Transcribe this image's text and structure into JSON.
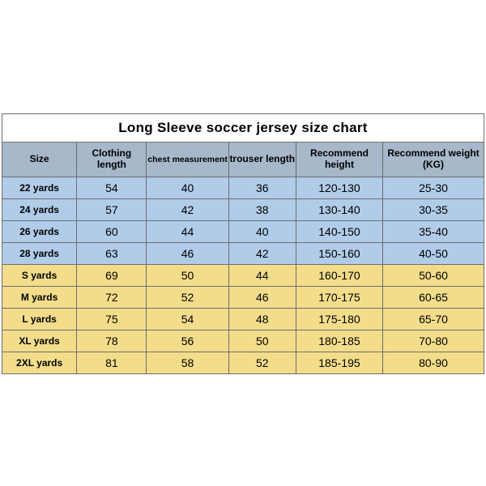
{
  "chart": {
    "title": "Long Sleeve soccer jersey size chart",
    "title_fontsize": 17,
    "header_bg": "#a6b8ca",
    "kid_row_bg": "#b0cce8",
    "adult_row_bg": "#f3dd8b",
    "border_color": "#6d6d6d",
    "columns": [
      {
        "label": "Size"
      },
      {
        "label": "Clothing length"
      },
      {
        "label": "chest measurement"
      },
      {
        "label": "trouser length"
      },
      {
        "label": "Recommend height"
      },
      {
        "label": "Recommend weight (KG)"
      }
    ],
    "rows": [
      {
        "group": "kid",
        "size": "22 yards",
        "clothing": "54",
        "chest": "40",
        "trouser": "36",
        "height": "120-130",
        "weight": "25-30"
      },
      {
        "group": "kid",
        "size": "24 yards",
        "clothing": "57",
        "chest": "42",
        "trouser": "38",
        "height": "130-140",
        "weight": "30-35"
      },
      {
        "group": "kid",
        "size": "26 yards",
        "clothing": "60",
        "chest": "44",
        "trouser": "40",
        "height": "140-150",
        "weight": "35-40"
      },
      {
        "group": "kid",
        "size": "28 yards",
        "clothing": "63",
        "chest": "46",
        "trouser": "42",
        "height": "150-160",
        "weight": "40-50"
      },
      {
        "group": "adult",
        "size": "S yards",
        "clothing": "69",
        "chest": "50",
        "trouser": "44",
        "height": "160-170",
        "weight": "50-60"
      },
      {
        "group": "adult",
        "size": "M yards",
        "clothing": "72",
        "chest": "52",
        "trouser": "46",
        "height": "170-175",
        "weight": "60-65"
      },
      {
        "group": "adult",
        "size": "L yards",
        "clothing": "75",
        "chest": "54",
        "trouser": "48",
        "height": "175-180",
        "weight": "65-70"
      },
      {
        "group": "adult",
        "size": "XL yards",
        "clothing": "78",
        "chest": "56",
        "trouser": "50",
        "height": "180-185",
        "weight": "70-80"
      },
      {
        "group": "adult",
        "size": "2XL yards",
        "clothing": "81",
        "chest": "58",
        "trouser": "52",
        "height": "185-195",
        "weight": "80-90"
      }
    ]
  }
}
